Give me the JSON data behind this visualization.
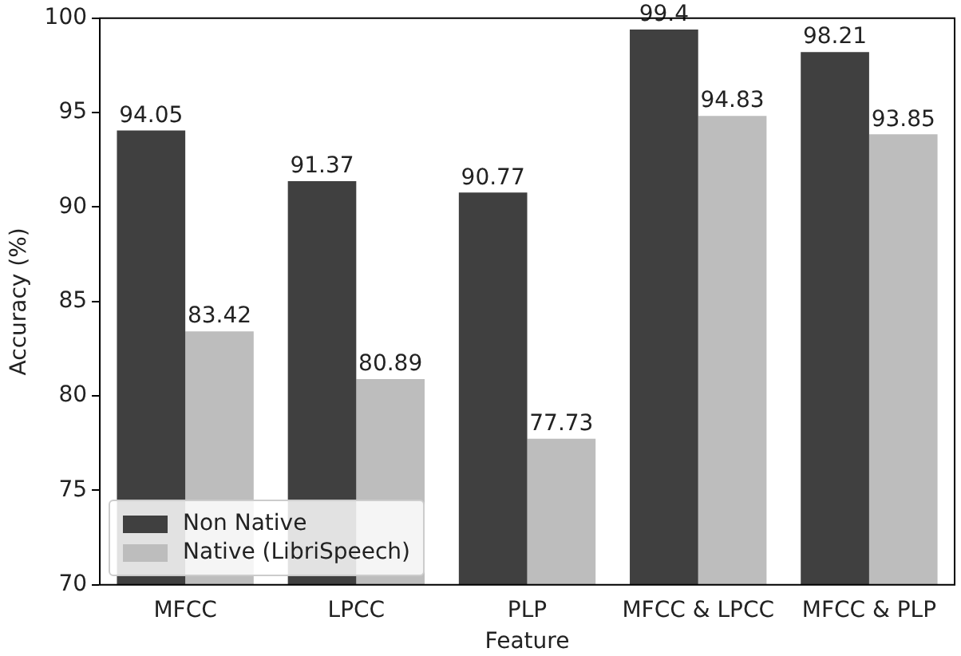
{
  "chart_data": {
    "type": "bar",
    "xlabel": "Feature",
    "ylabel": "Accuracy (%)",
    "categories": [
      "MFCC",
      "LPCC",
      "PLP",
      "MFCC & LPCC",
      "MFCC & PLP"
    ],
    "series": [
      {
        "name": "Non Native",
        "color": "#404040",
        "values": [
          94.05,
          91.37,
          90.77,
          99.4,
          98.21
        ]
      },
      {
        "name": "Native (LibriSpeech)",
        "color": "#bdbdbd",
        "values": [
          83.42,
          80.89,
          77.73,
          94.83,
          93.85
        ]
      }
    ],
    "ylim": [
      70,
      100
    ],
    "yticks": [
      70,
      75,
      80,
      85,
      90,
      95,
      100
    ],
    "grid": false,
    "legend": "bottom left",
    "data_labels": true
  }
}
